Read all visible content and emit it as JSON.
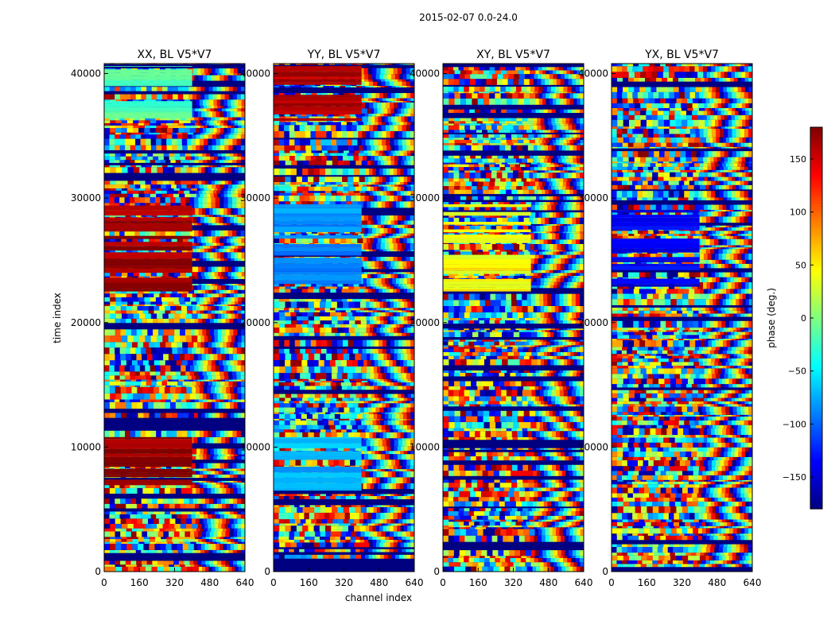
{
  "chart_data": {
    "type": "heatmap",
    "suptitle": "2015-02-07 0.0-24.0",
    "xlabel": "channel index",
    "ylabel": "time index",
    "xlim": [
      0,
      640
    ],
    "ylim": [
      0,
      40800
    ],
    "xticks": [
      0,
      160,
      320,
      480,
      640
    ],
    "yticks": [
      0,
      10000,
      20000,
      30000,
      40000
    ],
    "panels": [
      {
        "title": "XX, BL V5*V7",
        "dominant_phase_blocks": [
          {
            "t0": 22500,
            "t1": 29500,
            "ch1": 400,
            "phase": 170
          },
          {
            "t0": 6500,
            "t1": 10800,
            "ch1": 400,
            "phase": 175
          },
          {
            "t0": 36200,
            "t1": 40600,
            "ch1": 400,
            "phase": -20
          }
        ]
      },
      {
        "title": "YY, BL V5*V7",
        "dominant_phase_blocks": [
          {
            "t0": 36200,
            "t1": 40600,
            "ch1": 400,
            "phase": 160
          },
          {
            "t0": 22500,
            "t1": 29500,
            "ch1": 400,
            "phase": -85
          },
          {
            "t0": 6500,
            "t1": 10800,
            "ch1": 400,
            "phase": -70
          }
        ]
      },
      {
        "title": "XY, BL V5*V7",
        "dominant_phase_blocks": [
          {
            "t0": 22500,
            "t1": 29500,
            "ch1": 400,
            "phase": 45
          }
        ]
      },
      {
        "title": "YX, BL V5*V7",
        "dominant_phase_blocks": [
          {
            "t0": 22500,
            "t1": 29500,
            "ch1": 400,
            "phase": -140
          }
        ]
      }
    ],
    "colorbar": {
      "label": "phase (deg.)",
      "range": [
        -180,
        180
      ],
      "ticks": [
        -150,
        -100,
        -50,
        0,
        50,
        100,
        150
      ],
      "tick_labels": [
        "−150",
        "−100",
        "−50",
        "0",
        "50",
        "100",
        "150"
      ],
      "colormap": "jet"
    }
  }
}
